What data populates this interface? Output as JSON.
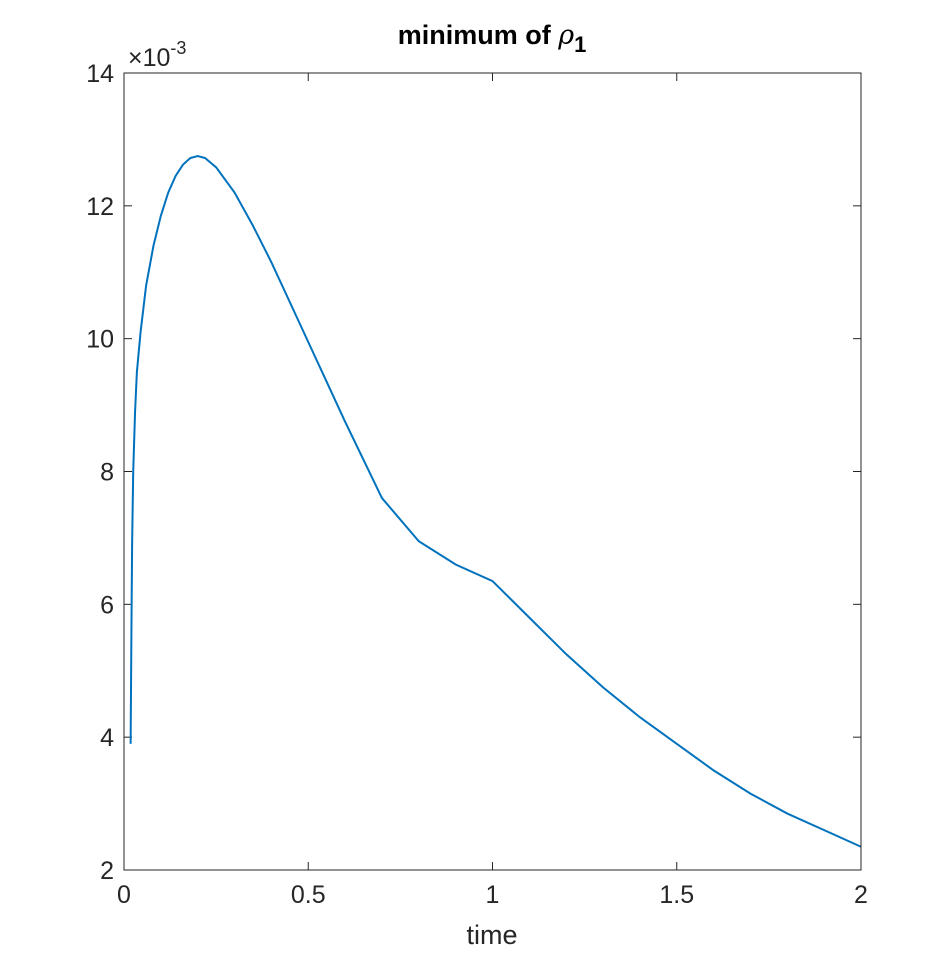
{
  "chart_data": {
    "type": "line",
    "title_prefix": "minimum of ",
    "title_symbol": "ρ",
    "title_subscript": "1",
    "xlabel": "time",
    "ylabel": "",
    "y_exponent_label": "×10",
    "y_exponent_power": "-3",
    "xlim": [
      0,
      2
    ],
    "ylim": [
      2,
      14
    ],
    "xticks": [
      0,
      0.5,
      1,
      1.5,
      2
    ],
    "xtick_labels": [
      "0",
      "0.5",
      "1",
      "1.5",
      "2"
    ],
    "yticks": [
      2,
      4,
      6,
      8,
      10,
      12,
      14
    ],
    "ytick_labels": [
      "2",
      "4",
      "6",
      "8",
      "10",
      "12",
      "14"
    ],
    "grid": false,
    "box": true,
    "line_color": "#0072BD",
    "series": [
      {
        "x": [
          0.018,
          0.02,
          0.022,
          0.025,
          0.03,
          0.035,
          0.045,
          0.06,
          0.08,
          0.1,
          0.12,
          0.14,
          0.16,
          0.18,
          0.2,
          0.22,
          0.25,
          0.3,
          0.35,
          0.4,
          0.45,
          0.5,
          0.55,
          0.6,
          0.7,
          0.8,
          0.9,
          1.0,
          1.1,
          1.2,
          1.3,
          1.4,
          1.5,
          1.6,
          1.7,
          1.8,
          1.9,
          2.0
        ],
        "y": [
          3.9,
          5.5,
          6.9,
          8.0,
          8.9,
          9.5,
          10.1,
          10.8,
          11.4,
          11.85,
          12.2,
          12.45,
          12.62,
          12.72,
          12.75,
          12.72,
          12.58,
          12.2,
          11.7,
          11.15,
          10.55,
          9.95,
          9.35,
          8.75,
          7.6,
          6.95,
          6.6,
          6.35,
          5.8,
          5.25,
          4.75,
          4.3,
          3.9,
          3.5,
          3.15,
          2.85,
          2.6,
          2.35
        ]
      }
    ]
  }
}
